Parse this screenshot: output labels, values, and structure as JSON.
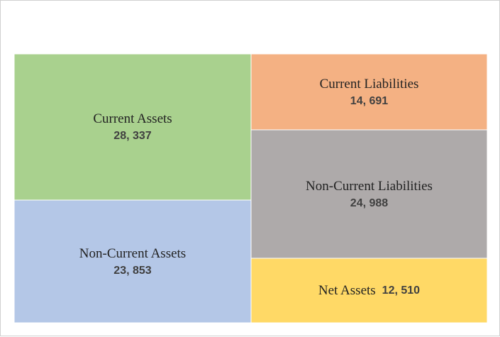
{
  "chart_data": {
    "type": "treemap",
    "blocks": [
      {
        "id": "current-assets",
        "label": "Current Assets",
        "value_text": "28, 337",
        "value": 28337,
        "color": "#a9d18e",
        "group": "assets"
      },
      {
        "id": "non-current-assets",
        "label": "Non-Current Assets",
        "value_text": "23, 853",
        "value": 23853,
        "color": "#b4c7e7",
        "group": "assets"
      },
      {
        "id": "current-liabilities",
        "label": "Current Liabilities",
        "value_text": "14, 691",
        "value": 14691,
        "color": "#f4b183",
        "group": "liabilities_and_net_assets"
      },
      {
        "id": "non-current-liabilities",
        "label": "Non-Current Liabilities",
        "value_text": "24, 988",
        "value": 24988,
        "color": "#aeaaaa",
        "group": "liabilities_and_net_assets"
      },
      {
        "id": "net-assets",
        "label": "Net Assets",
        "value_text": "12, 510",
        "value": 12510,
        "color": "#ffd966",
        "group": "liabilities_and_net_assets"
      }
    ]
  }
}
